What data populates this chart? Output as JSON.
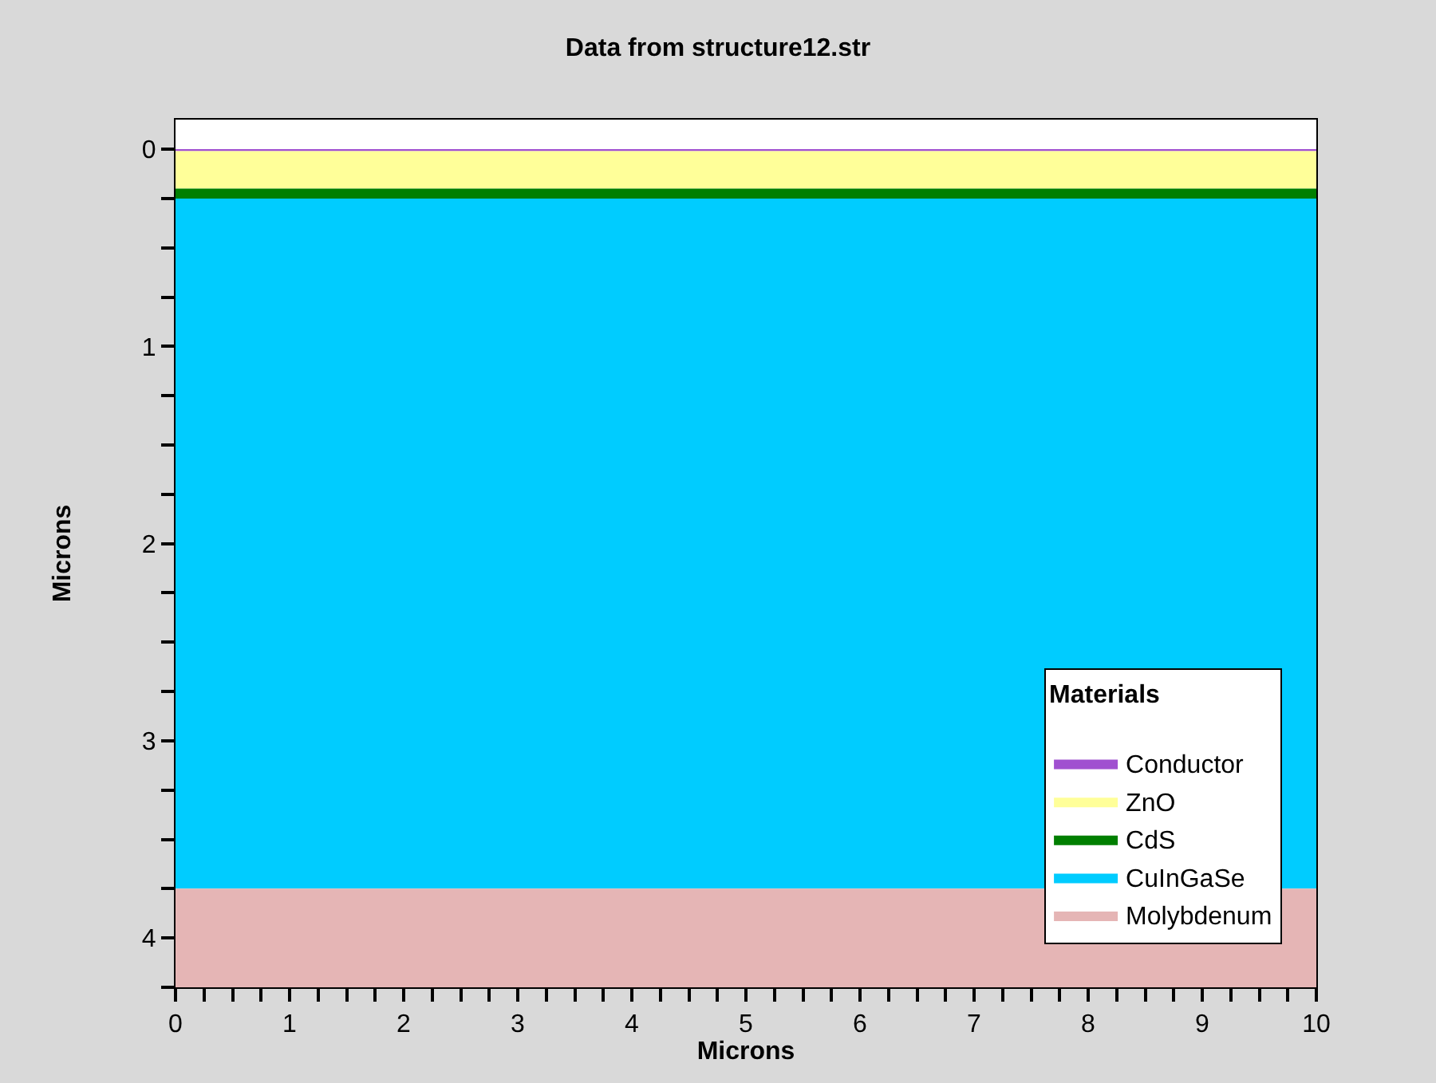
{
  "chart_data": {
    "type": "area",
    "stacked": true,
    "title": "Data from structure12.str",
    "xlabel": "Microns",
    "ylabel": "Microns",
    "legend_title": "Materials",
    "legend": "bottom right",
    "marker": "none",
    "x": [
      0,
      10
    ],
    "series": [
      {
        "name": "Conductor",
        "color": "#a050d0",
        "values": [
          0.01,
          0.01
        ]
      },
      {
        "name": "ZnO",
        "color": "#ffff99",
        "values": [
          0.19,
          0.19
        ]
      },
      {
        "name": "CdS",
        "color": "#007f00",
        "values": [
          0.05,
          0.05
        ]
      },
      {
        "name": "CuInGaSe",
        "color": "#00ccff",
        "values": [
          3.5,
          3.5
        ]
      },
      {
        "name": "Molybdenum",
        "color": "#e5b5b5",
        "values": [
          0.5,
          0.5
        ]
      }
    ],
    "xlim": [
      0,
      10
    ],
    "ylim": [
      4.25,
      -0.15
    ],
    "xticks": [
      0,
      {
        "value": 0.25,
        "label": null
      },
      {
        "value": 0.5,
        "label": null
      },
      {
        "value": 0.75,
        "label": null
      },
      1,
      {
        "value": 1.25,
        "label": null
      },
      {
        "value": 1.5,
        "label": null
      },
      {
        "value": 1.75,
        "label": null
      },
      2,
      {
        "value": 2.25,
        "label": null
      },
      {
        "value": 2.5,
        "label": null
      },
      {
        "value": 2.75,
        "label": null
      },
      3,
      {
        "value": 3.25,
        "label": null
      },
      {
        "value": 3.5,
        "label": null
      },
      {
        "value": 3.75,
        "label": null
      },
      4,
      {
        "value": 4.25,
        "label": null
      },
      {
        "value": 4.5,
        "label": null
      },
      {
        "value": 4.75,
        "label": null
      },
      5,
      {
        "value": 5.25,
        "label": null
      },
      {
        "value": 5.5,
        "label": null
      },
      {
        "value": 5.75,
        "label": null
      },
      6,
      {
        "value": 6.25,
        "label": null
      },
      {
        "value": 6.5,
        "label": null
      },
      {
        "value": 6.75,
        "label": null
      },
      7,
      {
        "value": 7.25,
        "label": null
      },
      {
        "value": 7.5,
        "label": null
      },
      {
        "value": 7.75,
        "label": null
      },
      8,
      {
        "value": 8.25,
        "label": null
      },
      {
        "value": 8.5,
        "label": null
      },
      {
        "value": 8.75,
        "label": null
      },
      9,
      {
        "value": 9.25,
        "label": null
      },
      {
        "value": 9.5,
        "label": null
      },
      {
        "value": 9.75,
        "label": null
      },
      10
    ],
    "yticks": [
      0,
      {
        "value": 0.25,
        "label": null
      },
      {
        "value": 0.5,
        "label": null
      },
      {
        "value": 0.75,
        "label": null
      },
      1,
      {
        "value": 1.25,
        "label": null
      },
      {
        "value": 1.5,
        "label": null
      },
      {
        "value": 1.75,
        "label": null
      },
      2,
      {
        "value": 2.25,
        "label": null
      },
      {
        "value": 2.5,
        "label": null
      },
      {
        "value": 2.75,
        "label": null
      },
      3,
      {
        "value": 3.25,
        "label": null
      },
      {
        "value": 3.5,
        "label": null
      },
      {
        "value": 3.75,
        "label": null
      },
      4,
      {
        "value": 4.25,
        "label": null
      }
    ]
  }
}
